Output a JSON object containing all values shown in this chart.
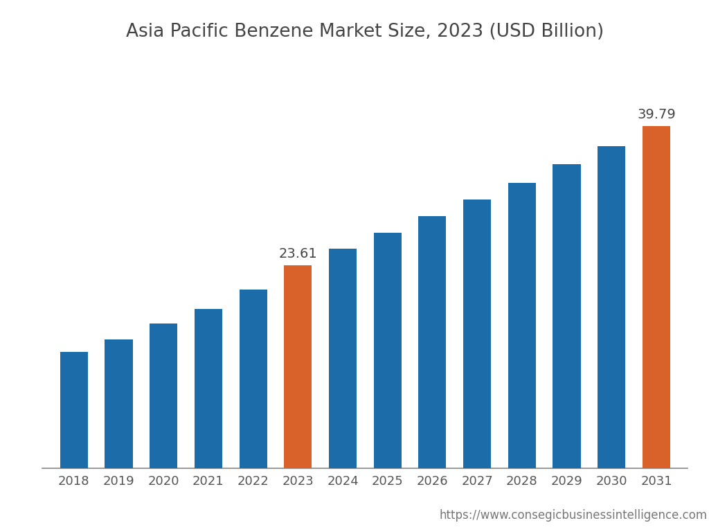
{
  "title": "Asia Pacific Benzene Market Size, 2023 (USD Billion)",
  "years": [
    2018,
    2019,
    2020,
    2021,
    2022,
    2023,
    2024,
    2025,
    2026,
    2027,
    2028,
    2029,
    2030,
    2031
  ],
  "values": [
    13.5,
    15.0,
    16.8,
    18.5,
    20.8,
    23.61,
    25.5,
    27.4,
    29.3,
    31.2,
    33.2,
    35.3,
    37.4,
    39.79
  ],
  "bar_colors": [
    "#1b6ca8",
    "#1b6ca8",
    "#1b6ca8",
    "#1b6ca8",
    "#1b6ca8",
    "#d9622b",
    "#1b6ca8",
    "#1b6ca8",
    "#1b6ca8",
    "#1b6ca8",
    "#1b6ca8",
    "#1b6ca8",
    "#1b6ca8",
    "#d9622b"
  ],
  "highlighted_labels": {
    "2023": "23.61",
    "2031": "39.79"
  },
  "background_color": "#ffffff",
  "watermark": "https://www.consegicbusinessintelligence.com",
  "title_fontsize": 19,
  "tick_fontsize": 13,
  "label_fontsize": 14,
  "watermark_fontsize": 12
}
